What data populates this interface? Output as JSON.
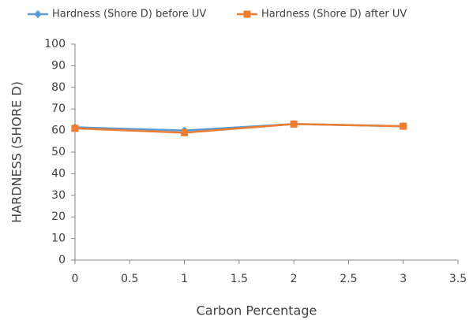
{
  "chart_data": {
    "type": "line",
    "x_label": "Carbon Percentage",
    "y_label": "HARDNESS (SHORE D)",
    "x": [
      0,
      1,
      2,
      3
    ],
    "series": [
      {
        "name": "Hardness (Shore D) before UV",
        "color": "#5b9bd5",
        "marker": "diamond",
        "values": [
          61.5,
          60,
          63,
          62
        ]
      },
      {
        "name": "Hardness (Shore D) after UV",
        "color": "#ed7d31",
        "marker": "square",
        "values": [
          61,
          59,
          63,
          62
        ]
      }
    ],
    "xlim": [
      0,
      3.5
    ],
    "xticks": [
      0,
      0.5,
      1,
      1.5,
      2,
      2.5,
      3,
      3.5
    ],
    "ylim": [
      0,
      100
    ],
    "yticks": [
      0,
      10,
      20,
      30,
      40,
      50,
      60,
      70,
      80,
      90,
      100
    ],
    "grid": false,
    "legend": "top"
  }
}
